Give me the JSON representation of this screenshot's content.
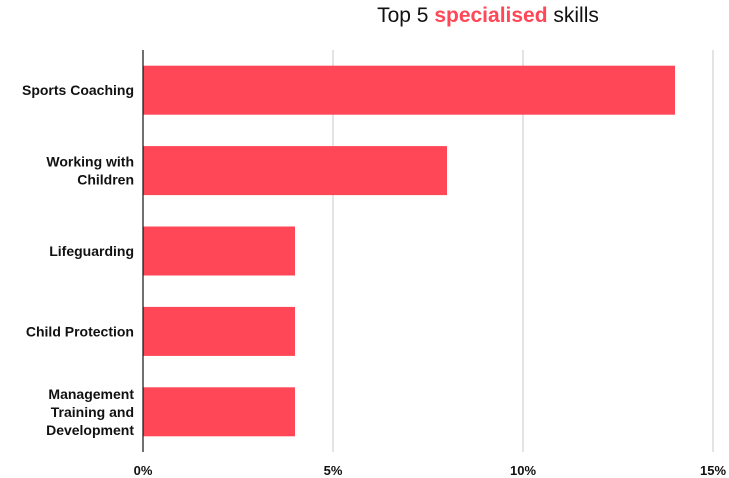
{
  "chart_data": {
    "type": "bar",
    "orientation": "horizontal",
    "title": {
      "prefix": "Top 5",
      "highlight": "specialised",
      "suffix": "skills"
    },
    "categories": [
      [
        "Sports Coaching"
      ],
      [
        "Working with",
        "Children"
      ],
      [
        "Lifeguarding"
      ],
      [
        "Child Protection"
      ],
      [
        "Management",
        "Training and",
        "Development"
      ]
    ],
    "values": [
      14,
      8,
      4,
      4,
      4
    ],
    "unit": "%",
    "xlim": [
      0,
      15
    ],
    "xticks": [
      0,
      5,
      10,
      15
    ],
    "xtick_labels": [
      "0%",
      "5%",
      "10%",
      "15%"
    ],
    "grid": true,
    "legend": "none",
    "colors": {
      "bar": "#ff4757",
      "accent_text": "#ff4757",
      "grid": "#c8c8c8",
      "axis": "#111111"
    }
  }
}
